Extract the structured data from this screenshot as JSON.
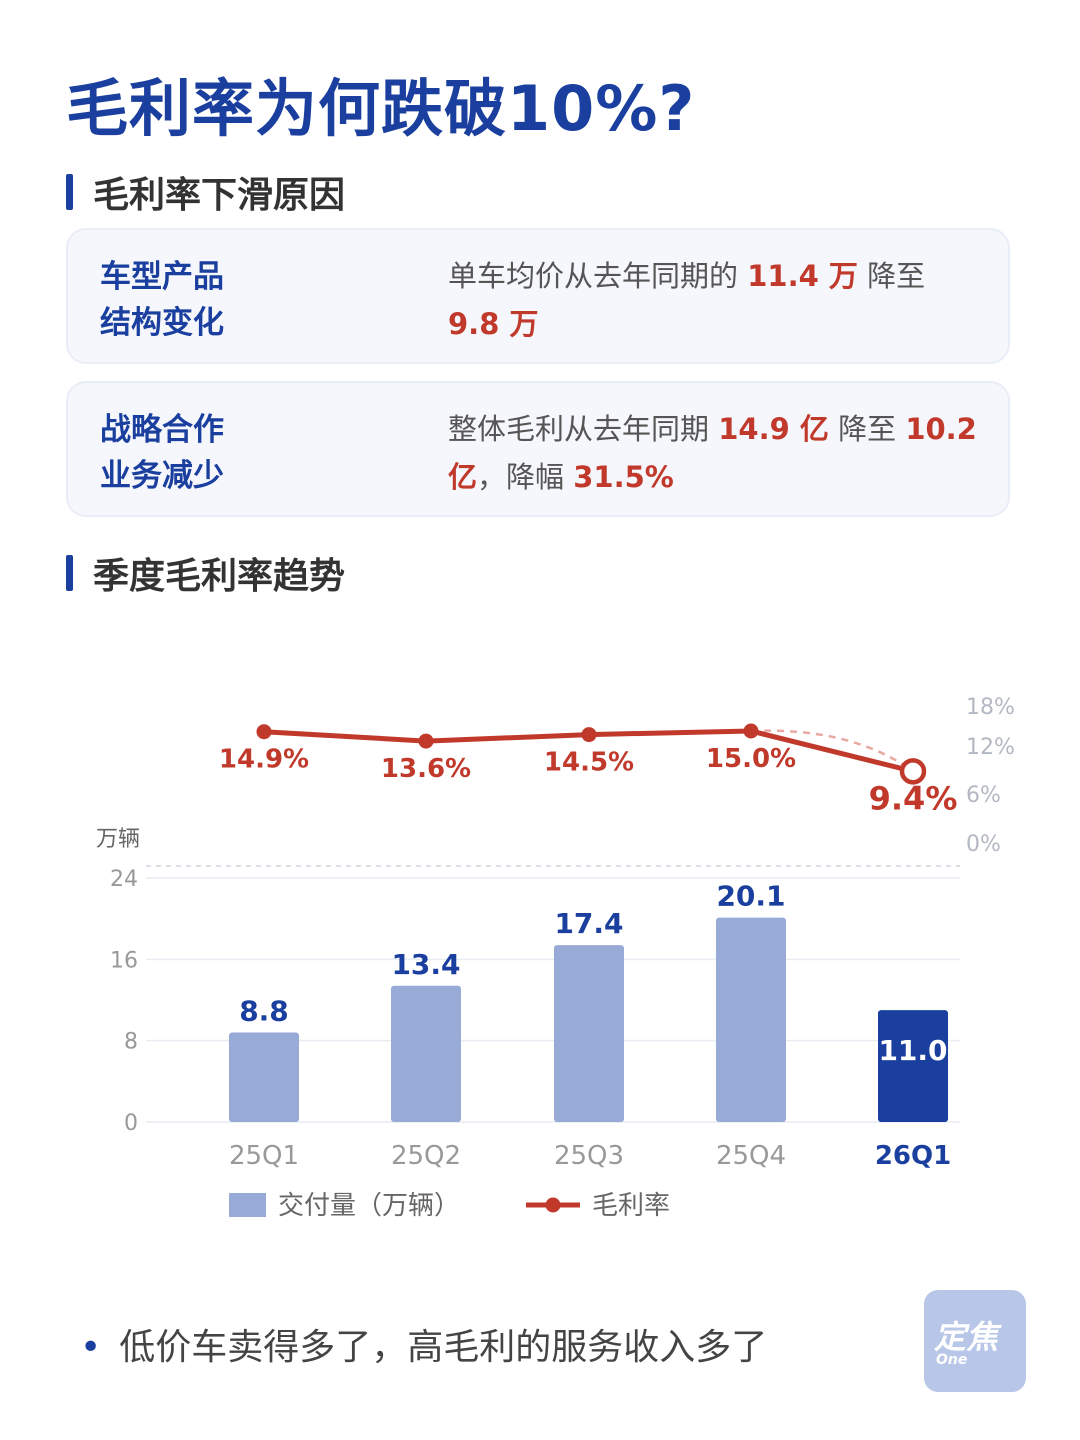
{
  "header": {
    "title": "毛利率为何跌破10%?"
  },
  "section1": {
    "title": "毛利率下滑原因"
  },
  "cards": [
    {
      "label_line1": "车型产品",
      "label_line2": "结构变化",
      "desc": [
        {
          "text": "单车均价从去年同期的 "
        },
        {
          "text": "11.4 万",
          "hl": true
        },
        {
          "text": " 降至 "
        },
        {
          "text": "9.8 万",
          "hl": true
        }
      ]
    },
    {
      "label_line1": "战略合作",
      "label_line2": "业务减少",
      "desc": [
        {
          "text": "整体毛利从去年同期 "
        },
        {
          "text": "14.9 亿",
          "hl": true
        },
        {
          "text": " 降至 "
        },
        {
          "text": "10.2 亿",
          "hl": true
        },
        {
          "text": "，降幅 "
        },
        {
          "text": "31.5%",
          "hl": true
        }
      ]
    }
  ],
  "section2": {
    "title": "季度毛利率趋势"
  },
  "chart_data": {
    "type": "bar",
    "categories": [
      "25Q1",
      "25Q2",
      "25Q3",
      "25Q4",
      "26Q1"
    ],
    "series": [
      {
        "name": "交付量（万辆）",
        "type": "bar",
        "values": [
          8.8,
          13.4,
          17.4,
          20.1,
          11.0
        ],
        "labels": [
          "8.8",
          "13.4",
          "17.4",
          "20.1",
          "11.0"
        ]
      },
      {
        "name": "毛利率",
        "type": "line",
        "values": [
          14.9,
          13.6,
          14.5,
          15.0,
          9.4
        ],
        "labels": [
          "14.9%",
          "13.6%",
          "14.5%",
          "15.0%",
          "9.4%"
        ]
      }
    ],
    "ylabel": "万辆",
    "y_ticks": [
      "0",
      "8",
      "16",
      "24"
    ],
    "ylim": [
      0,
      24
    ],
    "y2_ticks": [
      "0%",
      "6%",
      "12%",
      "18%"
    ],
    "highlight_category": "26Q1",
    "colors": {
      "bar": "#98aad6",
      "bar_highlight": "#1a3f9e",
      "line": "#c0392b",
      "label_blue": "#1a3f9e",
      "axis_text": "#999999"
    }
  },
  "footer": {
    "note": "低价车卖得多了，高毛利的服务收入多了",
    "bullet": "•"
  },
  "logo": {
    "line1": "定焦",
    "line2": "One"
  }
}
